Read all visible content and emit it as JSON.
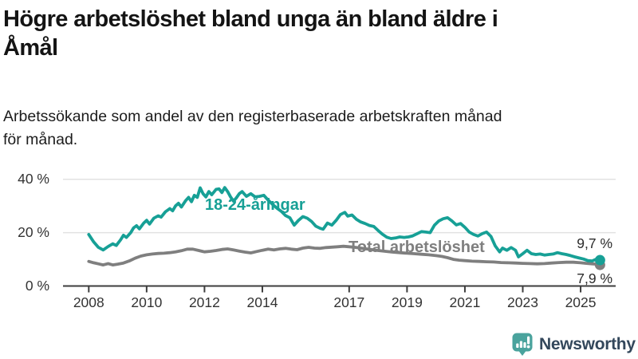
{
  "header": {
    "title_line1": "Högre arbetslöshet bland unga än bland äldre i",
    "title_line2": "Åmål",
    "subtitle_line1": "Arbetssökande som andel av den registerbaserade arbetskraften månad",
    "subtitle_line2": "för månad."
  },
  "colors": {
    "accent_teal": "#17a096",
    "series_gray": "#7f7f7f",
    "grid": "#e2e2e2",
    "axis": "#3d3d3d",
    "logo_teal": "#4aa39d",
    "logo_text": "#33475b"
  },
  "footer": {
    "brand": "Newsworthy",
    "logo_icon": "speech-bubble-bar-chart-icon"
  },
  "chart_data": {
    "type": "line",
    "title": "Högre arbetslöshet bland unga än bland äldre i Åmål",
    "subtitle": "Arbetssökande som andel av den registerbaserade arbetskraften månad för månad.",
    "unit": "%",
    "x_axis": {
      "range": [
        2007.8,
        2026.2
      ],
      "ticks": [
        {
          "year": 2008,
          "label": "2008"
        },
        {
          "year": 2010,
          "label": "2010"
        },
        {
          "year": 2012,
          "label": "2012"
        },
        {
          "year": 2014,
          "label": "2014"
        },
        {
          "year": 2017,
          "label": "2017"
        },
        {
          "year": 2019,
          "label": "2019"
        },
        {
          "year": 2021,
          "label": "2021"
        },
        {
          "year": 2023,
          "label": "2023"
        },
        {
          "year": 2025,
          "label": "2025"
        }
      ]
    },
    "y_axis": {
      "range": [
        0,
        42
      ],
      "gridlines": [
        20,
        40
      ],
      "ticks": [
        {
          "value": 0,
          "label": "0 %"
        },
        {
          "value": 20,
          "label": "20 %"
        },
        {
          "value": 40,
          "label": "40 %"
        }
      ]
    },
    "legend_position": "inline-labels",
    "grid": true,
    "series": [
      {
        "name": "18-24-åringar",
        "color": "#17a096",
        "end_label": "9,7 %",
        "end_value": 9.7,
        "points": [
          [
            2008.0,
            19.3
          ],
          [
            2008.17,
            16.5
          ],
          [
            2008.33,
            14.5
          ],
          [
            2008.5,
            13.5
          ],
          [
            2008.67,
            14.8
          ],
          [
            2008.83,
            15.8
          ],
          [
            2008.95,
            15.2
          ],
          [
            2009.1,
            17.3
          ],
          [
            2009.2,
            19.0
          ],
          [
            2009.3,
            18.2
          ],
          [
            2009.45,
            20.0
          ],
          [
            2009.55,
            21.8
          ],
          [
            2009.65,
            22.6
          ],
          [
            2009.75,
            21.4
          ],
          [
            2009.9,
            23.6
          ],
          [
            2010.0,
            24.6
          ],
          [
            2010.1,
            23.2
          ],
          [
            2010.25,
            25.4
          ],
          [
            2010.4,
            26.3
          ],
          [
            2010.5,
            25.8
          ],
          [
            2010.65,
            27.8
          ],
          [
            2010.8,
            29.0
          ],
          [
            2010.9,
            28.2
          ],
          [
            2011.0,
            30.0
          ],
          [
            2011.1,
            31.0
          ],
          [
            2011.2,
            29.6
          ],
          [
            2011.35,
            32.0
          ],
          [
            2011.45,
            33.2
          ],
          [
            2011.55,
            31.6
          ],
          [
            2011.65,
            34.0
          ],
          [
            2011.75,
            33.2
          ],
          [
            2011.85,
            36.8
          ],
          [
            2011.95,
            34.6
          ],
          [
            2012.05,
            33.4
          ],
          [
            2012.15,
            35.4
          ],
          [
            2012.25,
            34.2
          ],
          [
            2012.4,
            36.2
          ],
          [
            2012.5,
            36.4
          ],
          [
            2012.6,
            35.0
          ],
          [
            2012.7,
            36.9
          ],
          [
            2012.8,
            35.4
          ],
          [
            2012.9,
            33.4
          ],
          [
            2013.0,
            31.8
          ],
          [
            2013.1,
            33.0
          ],
          [
            2013.2,
            34.6
          ],
          [
            2013.3,
            35.4
          ],
          [
            2013.45,
            33.6
          ],
          [
            2013.6,
            34.6
          ],
          [
            2013.75,
            33.4
          ],
          [
            2013.9,
            33.6
          ],
          [
            2014.05,
            34.0
          ],
          [
            2014.2,
            32.2
          ],
          [
            2014.35,
            30.6
          ],
          [
            2014.5,
            29.2
          ],
          [
            2014.65,
            28.0
          ],
          [
            2014.8,
            26.4
          ],
          [
            2014.95,
            25.6
          ],
          [
            2015.1,
            22.8
          ],
          [
            2015.25,
            24.6
          ],
          [
            2015.4,
            26.0
          ],
          [
            2015.55,
            25.4
          ],
          [
            2015.7,
            24.2
          ],
          [
            2015.85,
            22.4
          ],
          [
            2016.0,
            21.6
          ],
          [
            2016.1,
            21.3
          ],
          [
            2016.25,
            23.6
          ],
          [
            2016.4,
            22.8
          ],
          [
            2016.55,
            24.6
          ],
          [
            2016.7,
            26.8
          ],
          [
            2016.85,
            27.6
          ],
          [
            2016.95,
            26.2
          ],
          [
            2017.1,
            26.6
          ],
          [
            2017.25,
            25.0
          ],
          [
            2017.4,
            24.0
          ],
          [
            2017.55,
            23.4
          ],
          [
            2017.7,
            22.7
          ],
          [
            2017.85,
            22.3
          ],
          [
            2018.0,
            20.8
          ],
          [
            2018.15,
            19.4
          ],
          [
            2018.3,
            18.3
          ],
          [
            2018.45,
            17.8
          ],
          [
            2018.6,
            18.0
          ],
          [
            2018.75,
            18.4
          ],
          [
            2018.9,
            18.2
          ],
          [
            2019.05,
            18.4
          ],
          [
            2019.2,
            18.8
          ],
          [
            2019.35,
            19.6
          ],
          [
            2019.5,
            20.4
          ],
          [
            2019.65,
            20.2
          ],
          [
            2019.8,
            20.0
          ],
          [
            2019.95,
            22.8
          ],
          [
            2020.1,
            24.4
          ],
          [
            2020.25,
            25.2
          ],
          [
            2020.4,
            25.6
          ],
          [
            2020.55,
            24.4
          ],
          [
            2020.7,
            22.9
          ],
          [
            2020.85,
            23.4
          ],
          [
            2021.0,
            22.0
          ],
          [
            2021.15,
            20.2
          ],
          [
            2021.3,
            19.3
          ],
          [
            2021.45,
            18.7
          ],
          [
            2021.6,
            19.6
          ],
          [
            2021.75,
            20.2
          ],
          [
            2021.9,
            18.6
          ],
          [
            2022.05,
            15.0
          ],
          [
            2022.2,
            12.8
          ],
          [
            2022.3,
            14.2
          ],
          [
            2022.45,
            13.4
          ],
          [
            2022.6,
            14.4
          ],
          [
            2022.75,
            13.4
          ],
          [
            2022.85,
            10.9
          ],
          [
            2023.0,
            12.1
          ],
          [
            2023.15,
            13.4
          ],
          [
            2023.3,
            12.1
          ],
          [
            2023.45,
            11.8
          ],
          [
            2023.6,
            12.0
          ],
          [
            2023.75,
            11.6
          ],
          [
            2023.9,
            11.8
          ],
          [
            2024.05,
            12.0
          ],
          [
            2024.2,
            12.5
          ],
          [
            2024.35,
            12.1
          ],
          [
            2024.5,
            11.8
          ],
          [
            2024.65,
            11.4
          ],
          [
            2024.8,
            10.9
          ],
          [
            2024.95,
            10.5
          ],
          [
            2025.1,
            10.1
          ],
          [
            2025.25,
            9.5
          ],
          [
            2025.4,
            9.4
          ],
          [
            2025.55,
            10.1
          ],
          [
            2025.67,
            9.7
          ]
        ]
      },
      {
        "name": "Total arbetslöshet",
        "color": "#7f7f7f",
        "end_label": "7,9 %",
        "end_value": 7.9,
        "points": [
          [
            2008.0,
            9.2
          ],
          [
            2008.17,
            8.7
          ],
          [
            2008.33,
            8.3
          ],
          [
            2008.5,
            7.9
          ],
          [
            2008.67,
            8.4
          ],
          [
            2008.83,
            7.9
          ],
          [
            2009.0,
            8.2
          ],
          [
            2009.2,
            8.6
          ],
          [
            2009.4,
            9.4
          ],
          [
            2009.6,
            10.4
          ],
          [
            2009.8,
            11.2
          ],
          [
            2010.0,
            11.7
          ],
          [
            2010.2,
            12.0
          ],
          [
            2010.4,
            12.2
          ],
          [
            2010.6,
            12.3
          ],
          [
            2010.8,
            12.5
          ],
          [
            2011.0,
            12.8
          ],
          [
            2011.2,
            13.2
          ],
          [
            2011.4,
            13.8
          ],
          [
            2011.6,
            13.8
          ],
          [
            2011.8,
            13.3
          ],
          [
            2012.0,
            12.8
          ],
          [
            2012.2,
            13.0
          ],
          [
            2012.4,
            13.3
          ],
          [
            2012.6,
            13.7
          ],
          [
            2012.8,
            13.9
          ],
          [
            2013.0,
            13.5
          ],
          [
            2013.2,
            13.1
          ],
          [
            2013.4,
            12.7
          ],
          [
            2013.6,
            12.4
          ],
          [
            2013.8,
            12.9
          ],
          [
            2014.0,
            13.4
          ],
          [
            2014.2,
            13.8
          ],
          [
            2014.4,
            13.5
          ],
          [
            2014.6,
            13.9
          ],
          [
            2014.8,
            14.1
          ],
          [
            2015.0,
            13.8
          ],
          [
            2015.2,
            13.6
          ],
          [
            2015.4,
            14.2
          ],
          [
            2015.6,
            14.5
          ],
          [
            2015.8,
            14.2
          ],
          [
            2016.0,
            14.1
          ],
          [
            2016.2,
            14.4
          ],
          [
            2016.6,
            14.7
          ],
          [
            2016.8,
            14.9
          ],
          [
            2017.0,
            14.7
          ],
          [
            2017.2,
            14.5
          ],
          [
            2017.4,
            14.2
          ],
          [
            2017.6,
            13.9
          ],
          [
            2017.8,
            13.6
          ],
          [
            2018.0,
            13.3
          ],
          [
            2018.25,
            13.0
          ],
          [
            2018.5,
            12.7
          ],
          [
            2018.75,
            12.5
          ],
          [
            2019.0,
            12.3
          ],
          [
            2019.25,
            12.1
          ],
          [
            2019.5,
            11.9
          ],
          [
            2019.75,
            11.7
          ],
          [
            2020.0,
            11.4
          ],
          [
            2020.2,
            11.1
          ],
          [
            2020.4,
            10.6
          ],
          [
            2020.6,
            10.0
          ],
          [
            2020.8,
            9.7
          ],
          [
            2021.0,
            9.5
          ],
          [
            2021.25,
            9.3
          ],
          [
            2021.5,
            9.2
          ],
          [
            2021.75,
            9.1
          ],
          [
            2022.0,
            9.0
          ],
          [
            2022.25,
            8.8
          ],
          [
            2022.5,
            8.7
          ],
          [
            2022.75,
            8.6
          ],
          [
            2023.0,
            8.5
          ],
          [
            2023.25,
            8.4
          ],
          [
            2023.5,
            8.3
          ],
          [
            2023.75,
            8.4
          ],
          [
            2024.0,
            8.6
          ],
          [
            2024.25,
            8.8
          ],
          [
            2024.5,
            8.9
          ],
          [
            2024.75,
            8.9
          ],
          [
            2025.0,
            8.7
          ],
          [
            2025.2,
            8.5
          ],
          [
            2025.4,
            8.3
          ],
          [
            2025.55,
            8.2
          ],
          [
            2025.67,
            7.9
          ]
        ]
      }
    ]
  }
}
